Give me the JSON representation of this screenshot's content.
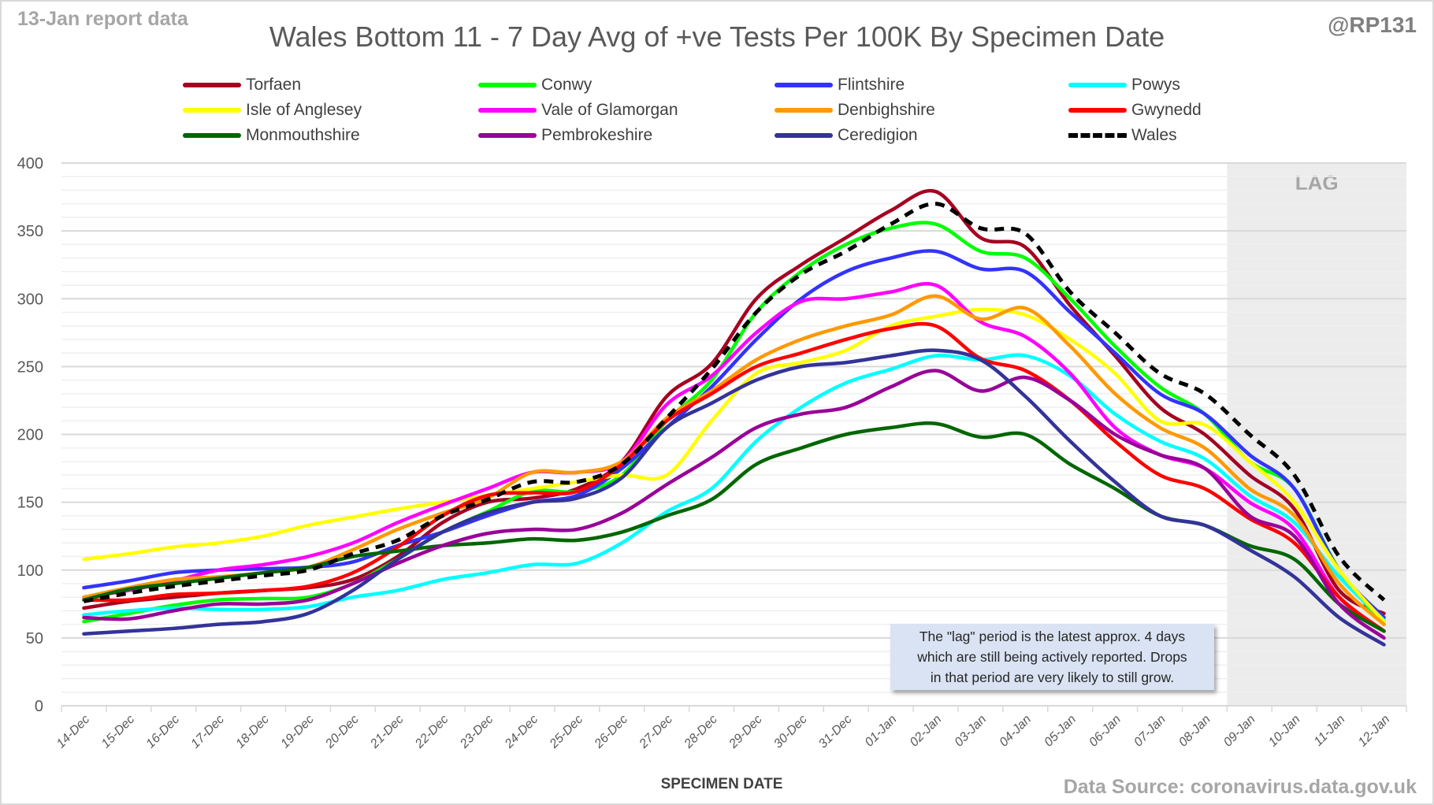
{
  "header": {
    "report_date": "13-Jan report data",
    "handle": "@RP131"
  },
  "footer": {
    "source": "Data Source: coronavirus.data.gov.uk"
  },
  "annotation": {
    "lines": [
      "The \"lag\" period is the latest approx. 4 days",
      "which are still being actively reported.  Drops",
      "in that period are very likely to still grow."
    ]
  },
  "chart_data": {
    "type": "line",
    "title": "Wales Bottom 11 - 7 Day Avg of +ve Tests Per 100K By Specimen Date",
    "xlabel": "SPECIMEN DATE",
    "ylabel": "",
    "ylim": [
      0,
      400
    ],
    "yticks": [
      0,
      50,
      100,
      150,
      200,
      250,
      300,
      350,
      400
    ],
    "y_minor_step": 10,
    "grid": true,
    "legend_position": "top",
    "lag_region": {
      "label": "LAG",
      "from": "09-Jan",
      "to": "12-Jan",
      "color": "#ececec"
    },
    "categories": [
      "14-Dec",
      "15-Dec",
      "16-Dec",
      "17-Dec",
      "18-Dec",
      "19-Dec",
      "20-Dec",
      "21-Dec",
      "22-Dec",
      "23-Dec",
      "24-Dec",
      "25-Dec",
      "26-Dec",
      "27-Dec",
      "28-Dec",
      "29-Dec",
      "30-Dec",
      "31-Dec",
      "01-Jan",
      "02-Jan",
      "03-Jan",
      "04-Jan",
      "05-Jan",
      "06-Jan",
      "07-Jan",
      "08-Jan",
      "09-Jan",
      "10-Jan",
      "11-Jan",
      "12-Jan"
    ],
    "series": [
      {
        "name": "Torfaen",
        "color": "#a50021",
        "dashed": false,
        "values": [
          72,
          77,
          80,
          83,
          85,
          87,
          93,
          110,
          135,
          150,
          153,
          160,
          180,
          228,
          252,
          300,
          325,
          345,
          365,
          379,
          345,
          338,
          295,
          258,
          220,
          200,
          170,
          145,
          85,
          68
        ]
      },
      {
        "name": "Conwy",
        "color": "#00ff00",
        "dashed": false,
        "values": [
          62,
          68,
          74,
          78,
          79,
          80,
          90,
          108,
          128,
          143,
          158,
          158,
          170,
          210,
          240,
          290,
          320,
          340,
          352,
          355,
          335,
          330,
          300,
          265,
          235,
          215,
          180,
          160,
          100,
          60
        ]
      },
      {
        "name": "Flintshire",
        "color": "#3333ff",
        "dashed": false,
        "values": [
          87,
          92,
          98,
          100,
          101,
          102,
          106,
          118,
          128,
          140,
          150,
          155,
          175,
          205,
          235,
          270,
          300,
          320,
          330,
          335,
          322,
          320,
          290,
          260,
          230,
          215,
          185,
          160,
          100,
          65
        ]
      },
      {
        "name": "Powys",
        "color": "#00ffff",
        "dashed": false,
        "values": [
          67,
          70,
          72,
          71,
          71,
          73,
          80,
          85,
          93,
          98,
          104,
          105,
          120,
          143,
          160,
          195,
          220,
          238,
          248,
          258,
          255,
          258,
          243,
          215,
          195,
          182,
          155,
          135,
          95,
          63
        ]
      },
      {
        "name": "Isle of Anglesey",
        "color": "#ffff00",
        "dashed": false,
        "values": [
          108,
          112,
          117,
          120,
          125,
          133,
          139,
          145,
          150,
          155,
          160,
          165,
          170,
          170,
          210,
          245,
          253,
          262,
          280,
          287,
          292,
          288,
          270,
          245,
          210,
          207,
          180,
          150,
          100,
          62
        ]
      },
      {
        "name": "Vale of Glamorgan",
        "color": "#ff00ff",
        "dashed": false,
        "values": [
          80,
          85,
          92,
          100,
          104,
          110,
          120,
          135,
          148,
          160,
          172,
          172,
          180,
          222,
          243,
          275,
          298,
          300,
          305,
          310,
          283,
          272,
          245,
          205,
          185,
          175,
          150,
          130,
          80,
          55
        ]
      },
      {
        "name": "Denbighshire",
        "color": "#ff9900",
        "dashed": false,
        "values": [
          80,
          87,
          93,
          95,
          98,
          102,
          115,
          130,
          142,
          153,
          172,
          172,
          180,
          212,
          232,
          255,
          270,
          280,
          288,
          302,
          285,
          293,
          265,
          230,
          205,
          190,
          160,
          140,
          90,
          60
        ]
      },
      {
        "name": "Gwynedd",
        "color": "#ff0000",
        "dashed": false,
        "values": [
          78,
          78,
          82,
          83,
          85,
          88,
          98,
          117,
          140,
          155,
          157,
          158,
          178,
          210,
          230,
          250,
          260,
          270,
          278,
          280,
          256,
          247,
          225,
          195,
          170,
          160,
          138,
          120,
          80,
          55
        ]
      },
      {
        "name": "Monmouthshire",
        "color": "#006600",
        "dashed": false,
        "values": [
          78,
          86,
          90,
          94,
          98,
          102,
          110,
          114,
          118,
          120,
          123,
          122,
          128,
          140,
          152,
          178,
          190,
          200,
          205,
          208,
          198,
          200,
          178,
          160,
          140,
          133,
          118,
          108,
          75,
          55
        ]
      },
      {
        "name": "Pembrokeshire",
        "color": "#990099",
        "dashed": false,
        "values": [
          65,
          64,
          70,
          75,
          75,
          78,
          90,
          105,
          118,
          127,
          130,
          130,
          142,
          163,
          183,
          205,
          215,
          220,
          235,
          247,
          232,
          242,
          225,
          200,
          185,
          175,
          140,
          125,
          75,
          50
        ]
      },
      {
        "name": "Ceredigion",
        "color": "#333399",
        "dashed": false,
        "values": [
          53,
          55,
          57,
          60,
          62,
          68,
          85,
          108,
          128,
          142,
          150,
          153,
          168,
          205,
          223,
          240,
          250,
          253,
          258,
          262,
          255,
          228,
          195,
          165,
          140,
          133,
          115,
          95,
          65,
          45
        ]
      },
      {
        "name": "Wales",
        "color": "#000000",
        "dashed": true,
        "values": [
          77,
          83,
          88,
          92,
          96,
          100,
          112,
          122,
          140,
          152,
          165,
          165,
          178,
          212,
          248,
          290,
          318,
          335,
          355,
          370,
          352,
          348,
          305,
          275,
          245,
          230,
          200,
          170,
          110,
          78
        ]
      }
    ]
  }
}
